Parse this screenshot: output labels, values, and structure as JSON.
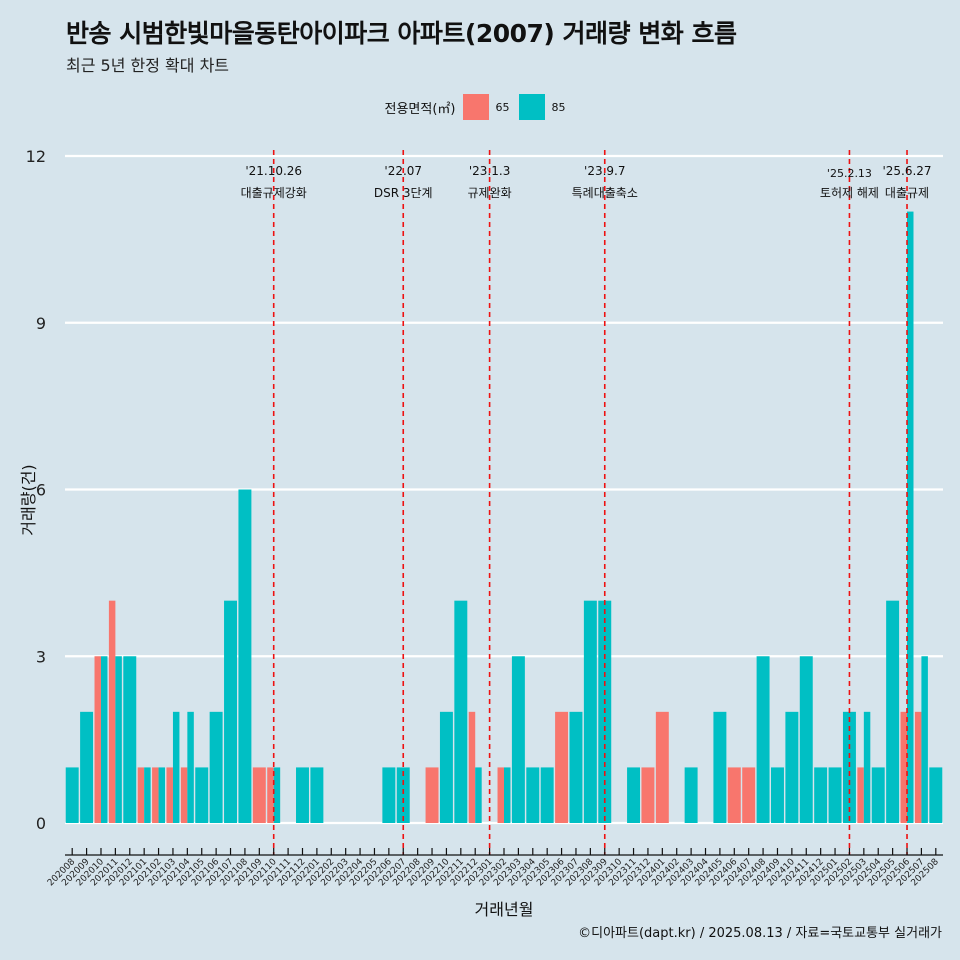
{
  "title": "반송 시범한빛마을동탄아이파크 아파트(2007) 거래량 변화 흐름",
  "subtitle": "최근 5년 한정 확대 차트",
  "caption": "©디아파트(dapt.kr) / 2025.08.13 / 자료=국토교통부 실거래가",
  "colors": {
    "background": "#d6e4ec",
    "series_65": "#f8766d",
    "series_85": "#00bfc4",
    "event_line": "#ee1111",
    "grid": "#ffffff"
  },
  "chart_data": {
    "type": "bar",
    "title": "반송 시범한빛마을동탄아이파크 아파트(2007) 거래량 변화 흐름",
    "subtitle": "최근 5년 한정 확대 차트",
    "xlabel": "거래년월",
    "ylabel": "거래량(건)",
    "ylim": [
      0,
      12
    ],
    "yticks": [
      0,
      3,
      6,
      9,
      12
    ],
    "grid": "horizontal",
    "legend_title": "전용면적(㎡)",
    "legend_position": "top",
    "categories": [
      "202008",
      "202009",
      "202010",
      "202011",
      "202012",
      "202101",
      "202102",
      "202103",
      "202104",
      "202105",
      "202106",
      "202107",
      "202108",
      "202109",
      "202110",
      "202111",
      "202112",
      "202201",
      "202202",
      "202203",
      "202204",
      "202205",
      "202206",
      "202207",
      "202208",
      "202209",
      "202210",
      "202211",
      "202212",
      "202301",
      "202302",
      "202303",
      "202304",
      "202305",
      "202306",
      "202307",
      "202308",
      "202309",
      "202310",
      "202311",
      "202312",
      "202401",
      "202402",
      "202403",
      "202404",
      "202405",
      "202406",
      "202407",
      "202408",
      "202409",
      "202410",
      "202411",
      "202412",
      "202501",
      "202502",
      "202503",
      "202504",
      "202505",
      "202506",
      "202507",
      "202508"
    ],
    "series": [
      {
        "name": "65",
        "values": [
          0,
          0,
          3,
          4,
          0,
          1,
          1,
          1,
          1,
          0,
          0,
          0,
          0,
          1,
          1,
          0,
          0,
          0,
          0,
          0,
          0,
          0,
          0,
          0,
          0,
          1,
          0,
          0,
          2,
          0,
          1,
          0,
          0,
          0,
          2,
          0,
          0,
          0,
          0,
          0,
          1,
          2,
          0,
          0,
          0,
          0,
          1,
          1,
          0,
          0,
          0,
          0,
          0,
          0,
          0,
          1,
          0,
          0,
          2,
          2,
          0
        ]
      },
      {
        "name": "85",
        "values": [
          1,
          2,
          3,
          3,
          3,
          1,
          1,
          2,
          2,
          1,
          2,
          4,
          6,
          0,
          1,
          0,
          1,
          1,
          0,
          0,
          0,
          0,
          1,
          1,
          0,
          0,
          2,
          4,
          1,
          0,
          1,
          3,
          1,
          1,
          0,
          2,
          4,
          4,
          0,
          1,
          0,
          0,
          0,
          1,
          0,
          2,
          0,
          0,
          3,
          1,
          2,
          3,
          1,
          1,
          2,
          2,
          1,
          4,
          11,
          3,
          1
        ]
      }
    ],
    "events": [
      {
        "date": "'21.10.26",
        "label": "대출규제강화",
        "month": "202110"
      },
      {
        "date": "'22.07",
        "label": "DSR 3단계",
        "month": "202207"
      },
      {
        "date": "'23.1.3",
        "label": "규제완화",
        "month": "202301"
      },
      {
        "date": "'23.9.7",
        "label": "특례대출축소",
        "month": "202309"
      },
      {
        "date": "'25.2.13",
        "label": "토허제 해제",
        "month": "202502"
      },
      {
        "date": "'25.6.27",
        "label": "대출규제",
        "month": "202506"
      }
    ]
  }
}
